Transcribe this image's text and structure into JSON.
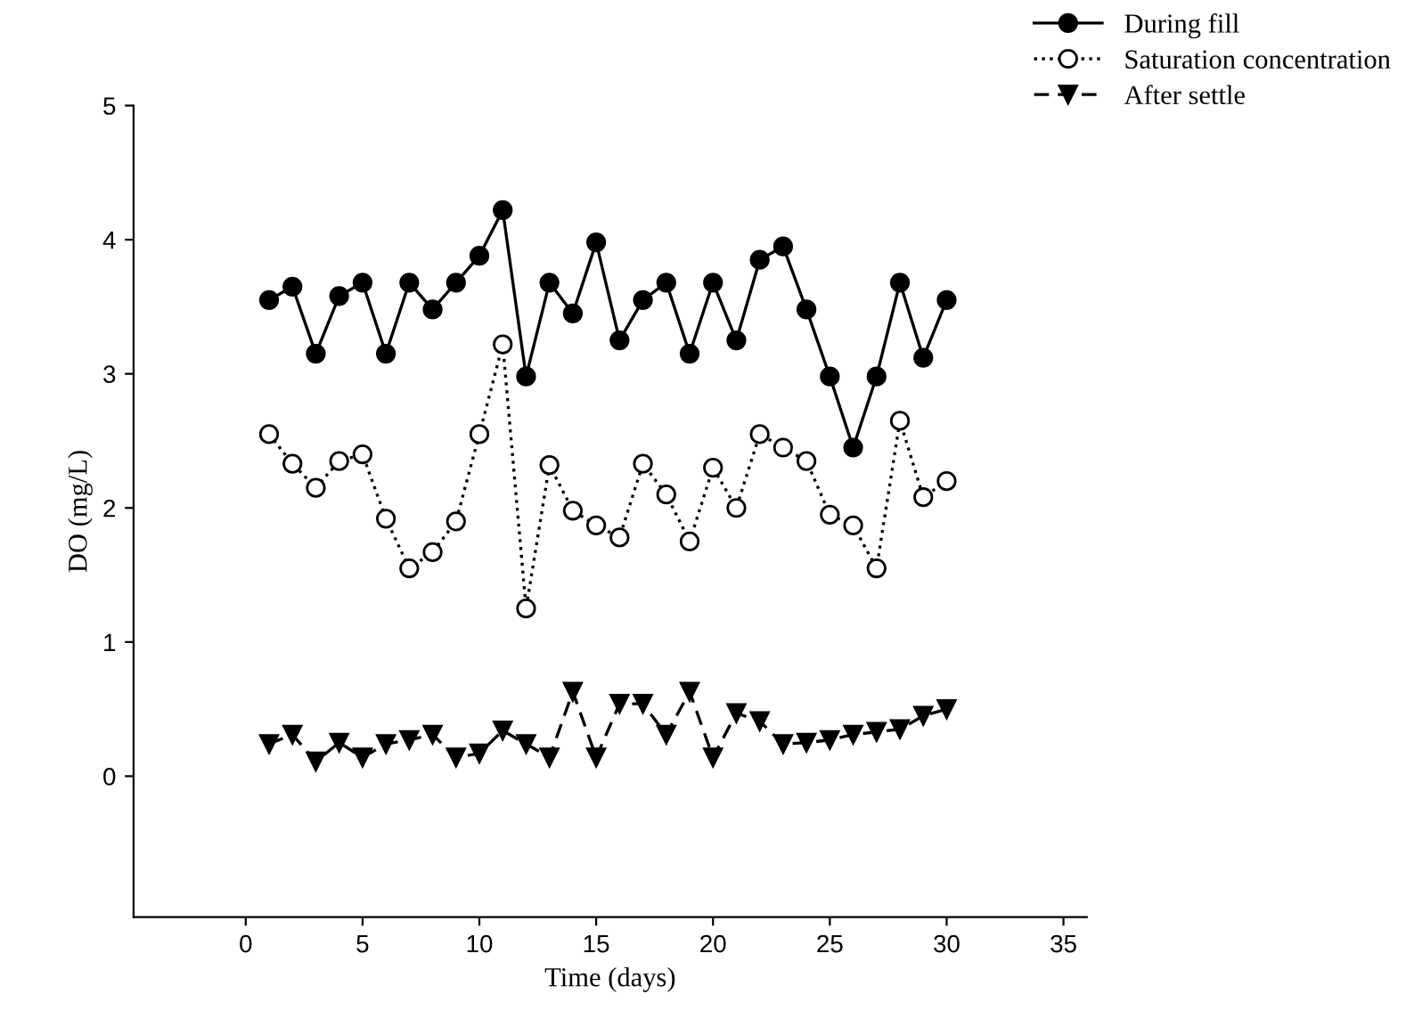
{
  "chart_data": {
    "type": "line",
    "xlabel": "Time (days)",
    "ylabel": "DO (mg/L)",
    "x": [
      1,
      2,
      3,
      4,
      5,
      6,
      7,
      8,
      9,
      10,
      11,
      12,
      13,
      14,
      15,
      16,
      17,
      18,
      19,
      20,
      21,
      22,
      23,
      24,
      25,
      26,
      27,
      28,
      29,
      30
    ],
    "series": [
      {
        "name": "During fill",
        "color": "#000000",
        "marker": "circle",
        "line_style": "solid",
        "values": [
          3.55,
          3.65,
          3.15,
          3.58,
          3.68,
          3.15,
          3.68,
          3.48,
          3.68,
          3.88,
          4.22,
          2.98,
          3.68,
          3.45,
          3.98,
          3.25,
          3.55,
          3.68,
          3.15,
          3.68,
          3.25,
          3.85,
          3.95,
          3.48,
          2.98,
          2.45,
          2.98,
          3.68,
          3.12,
          3.55
        ]
      },
      {
        "name": "Saturation concentration",
        "color": "#000000",
        "marker": "circle",
        "line_style": "dotted",
        "values": [
          2.55,
          2.33,
          2.15,
          2.35,
          2.4,
          1.92,
          1.55,
          1.67,
          1.9,
          2.55,
          3.22,
          1.25,
          2.32,
          1.98,
          1.87,
          1.78,
          2.33,
          2.1,
          1.75,
          2.3,
          2.0,
          2.55,
          2.45,
          2.35,
          1.95,
          1.87,
          1.55,
          2.65,
          2.08,
          2.2
        ]
      },
      {
        "name": "After settle",
        "color": "#000000",
        "marker": "triangle",
        "line_style": "dashed",
        "values": [
          0.24,
          0.31,
          0.11,
          0.25,
          0.14,
          0.24,
          0.27,
          0.31,
          0.14,
          0.17,
          0.34,
          0.24,
          0.14,
          0.63,
          0.14,
          0.54,
          0.54,
          0.31,
          0.63,
          0.14,
          0.47,
          0.41,
          0.24,
          0.25,
          0.27,
          0.31,
          0.33,
          0.35,
          0.45,
          0.5
        ]
      }
    ],
    "xlim": [
      -4.8,
      36
    ],
    "xticks": [
      0,
      5,
      10,
      15,
      20,
      25,
      30,
      35
    ],
    "ylim": [
      -1.05,
      5
    ],
    "yticks": [
      0,
      1,
      2,
      3,
      4,
      5
    ],
    "grid": false,
    "legend": "top right"
  }
}
